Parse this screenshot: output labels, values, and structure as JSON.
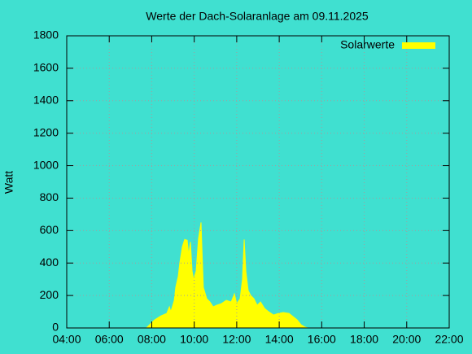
{
  "chart_data": {
    "type": "area",
    "title": "Werte der Dach-Solaranlage am 09.11.2025",
    "y_label": "Watt",
    "x": [
      7.75,
      7.94,
      8.14,
      8.44,
      8.71,
      8.83,
      8.9,
      9.06,
      9.13,
      9.25,
      9.32,
      9.44,
      9.55,
      9.67,
      9.74,
      9.82,
      9.9,
      9.97,
      10.09,
      10.2,
      10.32,
      10.36,
      10.43,
      10.59,
      10.74,
      10.89,
      11.05,
      11.28,
      11.51,
      11.74,
      11.89,
      12.0,
      12.16,
      12.27,
      12.35,
      12.43,
      12.54,
      12.66,
      12.81,
      12.96,
      13.12,
      13.31,
      13.5,
      13.73,
      13.96,
      14.19,
      14.46,
      14.65,
      14.84,
      15.03,
      15.22,
      15.34
    ],
    "series": [
      {
        "name": "Solarwerte",
        "color": "#ffff00",
        "values": [
          0,
          25,
          50,
          75,
          90,
          130,
          100,
          170,
          250,
          320,
          400,
          500,
          545,
          540,
          450,
          530,
          350,
          300,
          350,
          550,
          650,
          500,
          250,
          180,
          160,
          130,
          140,
          150,
          170,
          160,
          210,
          150,
          180,
          300,
          545,
          350,
          230,
          200,
          180,
          140,
          160,
          120,
          100,
          80,
          90,
          95,
          90,
          70,
          50,
          20,
          5,
          0
        ]
      }
    ],
    "xlim": [
      4,
      22
    ],
    "xticks": [
      {
        "value": 4,
        "label": "04:00"
      },
      {
        "value": 6,
        "label": "06:00"
      },
      {
        "value": 8,
        "label": "08:00"
      },
      {
        "value": 10,
        "label": "10:00"
      },
      {
        "value": 12,
        "label": "12:00"
      },
      {
        "value": 14,
        "label": "14:00"
      },
      {
        "value": 16,
        "label": "16:00"
      },
      {
        "value": 18,
        "label": "18:00"
      },
      {
        "value": 20,
        "label": "20:00"
      },
      {
        "value": 22,
        "label": "22:00"
      }
    ],
    "ylim": [
      0,
      1800
    ],
    "yticks": [
      0,
      200,
      400,
      600,
      800,
      1000,
      1200,
      1400,
      1600,
      1800
    ],
    "grid": true,
    "legend": "top-right"
  }
}
